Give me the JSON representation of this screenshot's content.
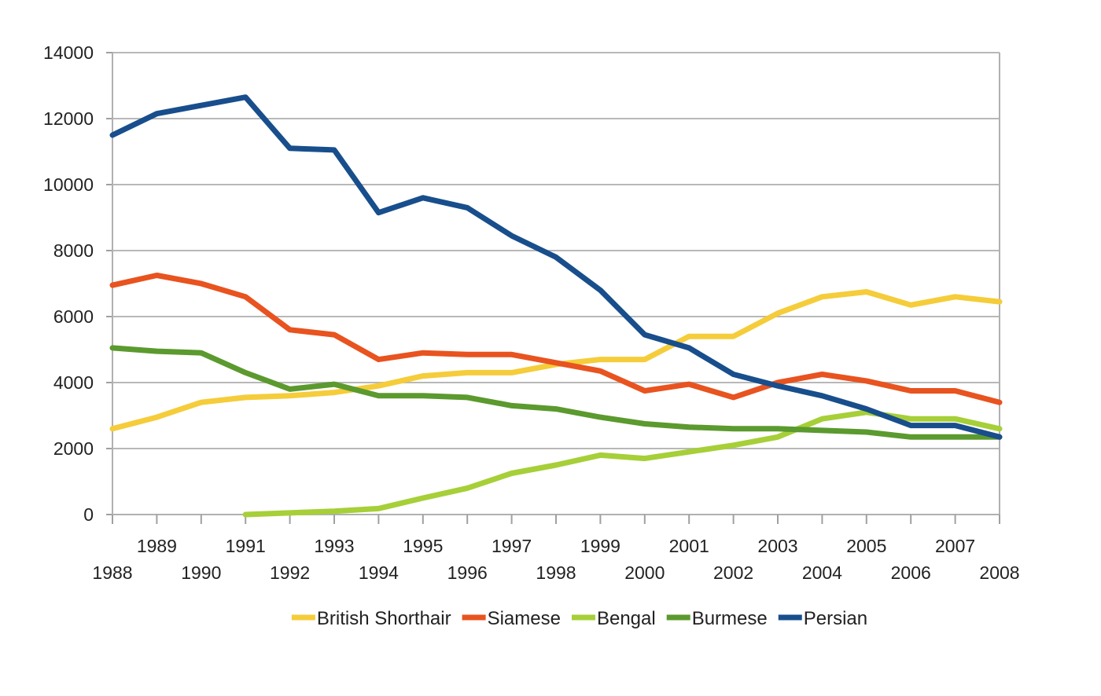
{
  "chart_data": {
    "type": "line",
    "title": "",
    "xlabel": "",
    "ylabel": "",
    "x": [
      1988,
      1989,
      1990,
      1991,
      1992,
      1993,
      1994,
      1995,
      1996,
      1997,
      1998,
      1999,
      2000,
      2001,
      2002,
      2003,
      2004,
      2005,
      2006,
      2007,
      2008
    ],
    "x_tick_labels": [
      "1988",
      "1989",
      "1990",
      "1991",
      "1992",
      "1993",
      "1994",
      "1995",
      "1996",
      "1997",
      "1998",
      "1999",
      "2000",
      "2001",
      "2002",
      "2003",
      "2004",
      "2005",
      "2006",
      "2007",
      "2008"
    ],
    "ylim": [
      0,
      14000
    ],
    "y_ticks": [
      0,
      2000,
      4000,
      6000,
      8000,
      10000,
      12000,
      14000
    ],
    "grid": true,
    "legend_position": "bottom",
    "series": [
      {
        "name": "British Shorthair",
        "color": "#f5cc3a",
        "values": [
          2600,
          2950,
          3400,
          3550,
          3600,
          3700,
          3900,
          4200,
          4300,
          4300,
          4550,
          4700,
          4700,
          5400,
          5400,
          6100,
          6600,
          6750,
          6350,
          6600,
          6450
        ]
      },
      {
        "name": "Siamese",
        "color": "#e8531f",
        "values": [
          6950,
          7250,
          7000,
          6600,
          5600,
          5450,
          4700,
          4900,
          4850,
          4850,
          4600,
          4350,
          3750,
          3950,
          3550,
          4000,
          4250,
          4050,
          3750,
          3750,
          3400
        ]
      },
      {
        "name": "Bengal",
        "color": "#a6cf38",
        "values": [
          null,
          null,
          null,
          0,
          50,
          100,
          180,
          500,
          800,
          1250,
          1500,
          1800,
          1700,
          1900,
          2100,
          2350,
          2900,
          3100,
          2900,
          2900,
          2600
        ]
      },
      {
        "name": "Burmese",
        "color": "#5b9a2e",
        "values": [
          5050,
          4950,
          4900,
          4300,
          3800,
          3950,
          3600,
          3600,
          3550,
          3300,
          3200,
          2950,
          2750,
          2650,
          2600,
          2600,
          2550,
          2500,
          2350,
          2350,
          2350
        ]
      },
      {
        "name": "Persian",
        "color": "#184e8c",
        "values": [
          11500,
          12150,
          12400,
          12650,
          11100,
          11050,
          9150,
          9600,
          9300,
          8450,
          7800,
          6800,
          5450,
          5050,
          4250,
          3900,
          3600,
          3200,
          2700,
          2700,
          2350
        ]
      }
    ]
  }
}
